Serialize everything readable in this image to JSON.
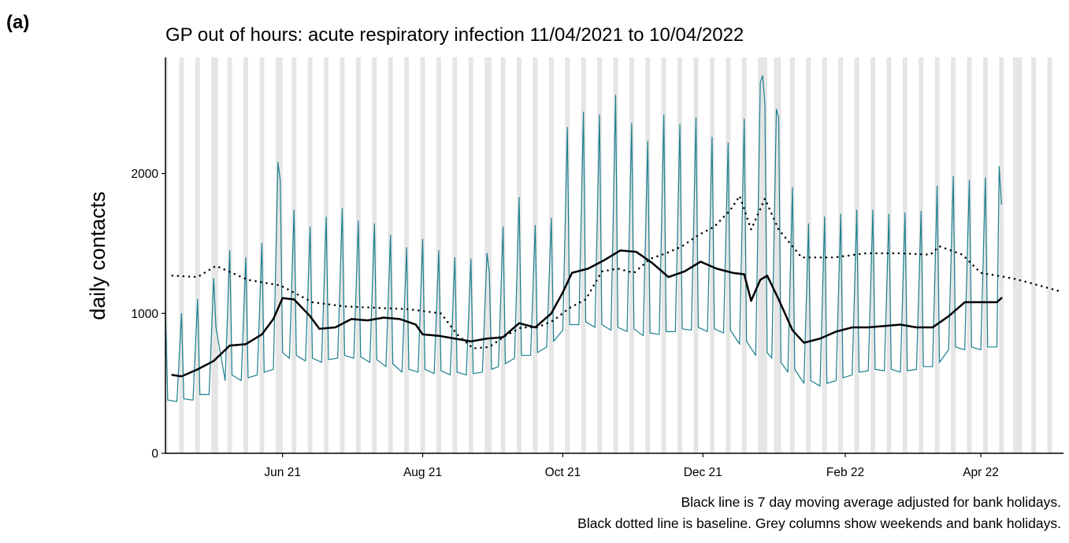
{
  "panel_label": "(a)",
  "chart_data": {
    "type": "line",
    "title": "GP out of hours: acute respiratory infection 11/04/2021 to 10/04/2022",
    "y_label": "daily contacts",
    "notes": [
      "Black line is 7 day moving average adjusted for bank holidays.",
      "Black dotted line is baseline. Grey columns show weekends and bank holidays."
    ],
    "xlim": [
      "2021-04-11",
      "2022-05-07"
    ],
    "xticks": [
      {
        "value": "2021-06-01",
        "label": "Jun 21"
      },
      {
        "value": "2021-08-01",
        "label": "Aug 21"
      },
      {
        "value": "2021-10-01",
        "label": "Oct 21"
      },
      {
        "value": "2021-12-01",
        "label": "Dec 21"
      },
      {
        "value": "2022-02-01",
        "label": "Feb 22"
      },
      {
        "value": "2022-04-01",
        "label": "Apr 22"
      }
    ],
    "ylim": [
      0,
      2830
    ],
    "yticks": [
      0,
      1000,
      2000
    ],
    "column_color": "#e5e5e5",
    "bank_holidays": [
      "2021-05-03",
      "2021-05-31",
      "2021-08-30",
      "2021-12-27",
      "2021-12-28",
      "2022-01-03",
      "2022-04-15",
      "2022-04-18"
    ],
    "series": [
      {
        "color": "#1a7f8e",
        "line_style": "solid",
        "line_width": 1.2,
        "x": [
          "2021-04-11",
          "2021-04-12",
          "2021-04-16",
          "2021-04-18",
          "2021-04-19",
          "2021-04-23",
          "2021-04-25",
          "2021-04-26",
          "2021-04-30",
          "2021-05-02",
          "2021-05-03",
          "2021-05-07",
          "2021-05-09",
          "2021-05-10",
          "2021-05-14",
          "2021-05-16",
          "2021-05-17",
          "2021-05-21",
          "2021-05-23",
          "2021-05-24",
          "2021-05-28",
          "2021-05-30",
          "2021-05-31",
          "2021-06-01",
          "2021-06-04",
          "2021-06-06",
          "2021-06-07",
          "2021-06-11",
          "2021-06-13",
          "2021-06-14",
          "2021-06-18",
          "2021-06-20",
          "2021-06-21",
          "2021-06-25",
          "2021-06-27",
          "2021-06-28",
          "2021-07-02",
          "2021-07-04",
          "2021-07-05",
          "2021-07-09",
          "2021-07-11",
          "2021-07-12",
          "2021-07-16",
          "2021-07-18",
          "2021-07-19",
          "2021-07-23",
          "2021-07-25",
          "2021-07-26",
          "2021-07-30",
          "2021-08-01",
          "2021-08-02",
          "2021-08-06",
          "2021-08-08",
          "2021-08-09",
          "2021-08-13",
          "2021-08-15",
          "2021-08-16",
          "2021-08-20",
          "2021-08-22",
          "2021-08-23",
          "2021-08-27",
          "2021-08-29",
          "2021-08-30",
          "2021-08-31",
          "2021-09-03",
          "2021-09-05",
          "2021-09-06",
          "2021-09-10",
          "2021-09-12",
          "2021-09-13",
          "2021-09-17",
          "2021-09-19",
          "2021-09-20",
          "2021-09-24",
          "2021-09-26",
          "2021-09-27",
          "2021-10-01",
          "2021-10-03",
          "2021-10-04",
          "2021-10-08",
          "2021-10-10",
          "2021-10-11",
          "2021-10-15",
          "2021-10-17",
          "2021-10-18",
          "2021-10-22",
          "2021-10-24",
          "2021-10-25",
          "2021-10-29",
          "2021-10-31",
          "2021-11-01",
          "2021-11-05",
          "2021-11-07",
          "2021-11-08",
          "2021-11-12",
          "2021-11-14",
          "2021-11-15",
          "2021-11-19",
          "2021-11-21",
          "2021-11-22",
          "2021-11-26",
          "2021-11-28",
          "2021-11-29",
          "2021-12-03",
          "2021-12-05",
          "2021-12-06",
          "2021-12-10",
          "2021-12-12",
          "2021-12-13",
          "2021-12-17",
          "2021-12-19",
          "2021-12-20",
          "2021-12-24",
          "2021-12-26",
          "2021-12-27",
          "2021-12-28",
          "2021-12-29",
          "2021-12-31",
          "2022-01-02",
          "2022-01-03",
          "2022-01-04",
          "2022-01-07",
          "2022-01-09",
          "2022-01-10",
          "2022-01-14",
          "2022-01-16",
          "2022-01-17",
          "2022-01-21",
          "2022-01-23",
          "2022-01-24",
          "2022-01-28",
          "2022-01-30",
          "2022-01-31",
          "2022-02-04",
          "2022-02-06",
          "2022-02-07",
          "2022-02-11",
          "2022-02-13",
          "2022-02-14",
          "2022-02-18",
          "2022-02-20",
          "2022-02-21",
          "2022-02-25",
          "2022-02-27",
          "2022-02-28",
          "2022-03-04",
          "2022-03-06",
          "2022-03-07",
          "2022-03-11",
          "2022-03-13",
          "2022-03-14",
          "2022-03-18",
          "2022-03-20",
          "2022-03-21",
          "2022-03-25",
          "2022-03-27",
          "2022-03-28",
          "2022-04-01",
          "2022-04-03",
          "2022-04-04",
          "2022-04-08",
          "2022-04-09",
          "2022-04-10"
        ],
        "values": [
          1030,
          380,
          370,
          1000,
          390,
          380,
          1100,
          420,
          420,
          1250,
          900,
          520,
          1450,
          560,
          520,
          1400,
          540,
          560,
          1500,
          580,
          600,
          2080,
          1950,
          720,
          680,
          1740,
          700,
          660,
          1620,
          680,
          650,
          1690,
          670,
          680,
          1750,
          700,
          680,
          1660,
          690,
          650,
          1640,
          670,
          620,
          1560,
          640,
          580,
          1470,
          600,
          580,
          1530,
          600,
          570,
          1450,
          590,
          560,
          1400,
          580,
          560,
          1390,
          570,
          580,
          1430,
          1300,
          600,
          620,
          1620,
          640,
          680,
          1830,
          700,
          700,
          1630,
          720,
          760,
          1680,
          800,
          880,
          2330,
          920,
          920,
          2440,
          940,
          900,
          2420,
          920,
          880,
          2560,
          900,
          870,
          2360,
          890,
          840,
          2230,
          860,
          850,
          2420,
          870,
          870,
          2350,
          890,
          880,
          2400,
          900,
          870,
          2260,
          890,
          860,
          2220,
          880,
          780,
          2390,
          800,
          700,
          2650,
          2700,
          2500,
          720,
          680,
          2460,
          2400,
          650,
          580,
          1900,
          600,
          500,
          1640,
          520,
          480,
          1690,
          500,
          520,
          1710,
          540,
          560,
          1740,
          580,
          590,
          1740,
          600,
          590,
          1710,
          600,
          580,
          1720,
          590,
          600,
          1730,
          620,
          620,
          1910,
          650,
          740,
          1980,
          760,
          740,
          1950,
          760,
          740,
          1970,
          760,
          760,
          2050,
          1780
        ]
      },
      {
        "color": "#000000",
        "line_style": "solid",
        "line_width": 2.5,
        "x": [
          "2021-04-14",
          "2021-04-18",
          "2021-04-25",
          "2021-05-02",
          "2021-05-09",
          "2021-05-16",
          "2021-05-23",
          "2021-05-28",
          "2021-06-01",
          "2021-06-06",
          "2021-06-13",
          "2021-06-17",
          "2021-06-24",
          "2021-07-01",
          "2021-07-08",
          "2021-07-15",
          "2021-07-22",
          "2021-07-29",
          "2021-08-01",
          "2021-08-08",
          "2021-08-15",
          "2021-08-22",
          "2021-08-29",
          "2021-09-05",
          "2021-09-12",
          "2021-09-19",
          "2021-09-26",
          "2021-10-01",
          "2021-10-05",
          "2021-10-12",
          "2021-10-19",
          "2021-10-26",
          "2021-11-02",
          "2021-11-09",
          "2021-11-16",
          "2021-11-23",
          "2021-11-30",
          "2021-12-07",
          "2021-12-14",
          "2021-12-19",
          "2021-12-22",
          "2021-12-26",
          "2021-12-29",
          "2022-01-03",
          "2022-01-09",
          "2022-01-14",
          "2022-01-21",
          "2022-01-28",
          "2022-02-04",
          "2022-02-11",
          "2022-02-18",
          "2022-02-25",
          "2022-03-04",
          "2022-03-11",
          "2022-03-18",
          "2022-03-25",
          "2022-04-01",
          "2022-04-08",
          "2022-04-10"
        ],
        "values": [
          560,
          550,
          600,
          660,
          770,
          780,
          850,
          960,
          1110,
          1100,
          980,
          890,
          900,
          960,
          950,
          970,
          960,
          920,
          850,
          840,
          820,
          800,
          820,
          830,
          930,
          900,
          1000,
          1150,
          1290,
          1320,
          1380,
          1450,
          1440,
          1360,
          1260,
          1300,
          1370,
          1320,
          1290,
          1280,
          1090,
          1240,
          1270,
          1100,
          880,
          790,
          820,
          870,
          900,
          900,
          910,
          920,
          900,
          900,
          980,
          1080,
          1080,
          1080,
          1110
        ]
      },
      {
        "color": "#000000",
        "line_style": "dotted",
        "line_width": 2.5,
        "x": [
          "2021-04-14",
          "2021-04-25",
          "2021-05-03",
          "2021-05-17",
          "2021-05-31",
          "2021-06-14",
          "2021-06-28",
          "2021-07-12",
          "2021-07-26",
          "2021-08-09",
          "2021-08-16",
          "2021-08-23",
          "2021-08-30",
          "2021-09-06",
          "2021-09-13",
          "2021-09-20",
          "2021-09-27",
          "2021-10-04",
          "2021-10-11",
          "2021-10-18",
          "2021-10-25",
          "2021-11-01",
          "2021-11-08",
          "2021-11-15",
          "2021-11-22",
          "2021-11-29",
          "2021-12-06",
          "2021-12-13",
          "2021-12-17",
          "2021-12-22",
          "2021-12-28",
          "2022-01-03",
          "2022-01-13",
          "2022-01-27",
          "2022-02-10",
          "2022-02-24",
          "2022-03-10",
          "2022-03-14",
          "2022-03-24",
          "2022-04-01",
          "2022-04-15",
          "2022-04-22",
          "2022-05-05"
        ],
        "values": [
          1270,
          1260,
          1340,
          1240,
          1200,
          1080,
          1050,
          1040,
          1030,
          1000,
          850,
          750,
          760,
          840,
          900,
          900,
          950,
          1040,
          1100,
          1300,
          1320,
          1290,
          1390,
          1430,
          1480,
          1560,
          1620,
          1740,
          1840,
          1600,
          1820,
          1600,
          1400,
          1400,
          1430,
          1430,
          1420,
          1480,
          1420,
          1290,
          1250,
          1220,
          1160
        ]
      }
    ]
  }
}
